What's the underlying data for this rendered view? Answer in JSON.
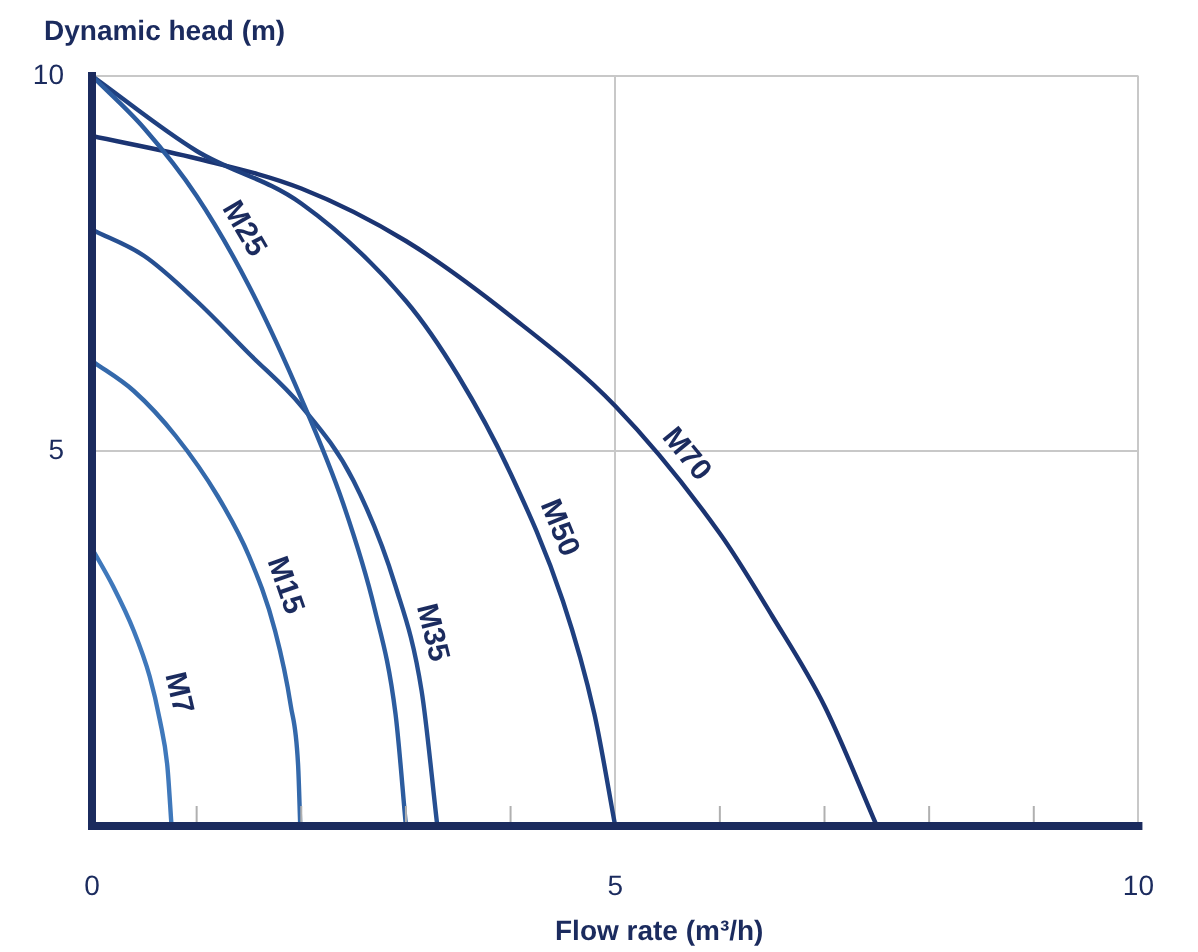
{
  "chart_data": {
    "type": "line",
    "xlabel": "Flow rate (m³/h)",
    "ylabel": "Dynamic head (m)",
    "xlim": [
      0,
      10
    ],
    "ylim": [
      0,
      10
    ],
    "xticks": [
      0,
      {
        "value": 1,
        "label": null
      },
      {
        "value": 2,
        "label": null
      },
      {
        "value": 3,
        "label": null
      },
      {
        "value": 4,
        "label": null
      },
      5,
      {
        "value": 6,
        "label": null
      },
      {
        "value": 7,
        "label": null
      },
      {
        "value": 8,
        "label": null
      },
      {
        "value": 9,
        "label": null
      },
      10
    ],
    "yticks": [
      5,
      10
    ],
    "grid": true,
    "legend": false,
    "marker": "none",
    "line_style": "solid",
    "series": [
      {
        "name": "M7",
        "color": "#3f78bb",
        "x": [
          0,
          0.2,
          0.4,
          0.55,
          0.65,
          0.72,
          0.76
        ],
        "values": [
          3.7,
          3.2,
          2.6,
          2.0,
          1.4,
          0.8,
          0
        ]
      },
      {
        "name": "M15",
        "color": "#3469ab",
        "x": [
          0,
          0.4,
          0.8,
          1.2,
          1.5,
          1.75,
          1.9,
          1.97,
          1.99
        ],
        "values": [
          6.2,
          5.8,
          5.2,
          4.4,
          3.6,
          2.6,
          1.6,
          0.8,
          0
        ]
      },
      {
        "name": "M25",
        "color": "#2c5c9f",
        "x": [
          0,
          0.5,
          1.0,
          1.5,
          2.0,
          2.4,
          2.7,
          2.9,
          3.0
        ],
        "values": [
          10,
          9.3,
          8.4,
          7.2,
          5.7,
          4.3,
          2.9,
          1.5,
          0
        ]
      },
      {
        "name": "M35",
        "color": "#264f91",
        "x": [
          0,
          0.5,
          1.0,
          1.5,
          2.0,
          2.5,
          2.9,
          3.15,
          3.3
        ],
        "values": [
          7.95,
          7.6,
          7.0,
          6.3,
          5.6,
          4.6,
          3.2,
          1.8,
          0
        ]
      },
      {
        "name": "M50",
        "color": "#1f4080",
        "x": [
          0,
          1,
          2,
          3,
          3.5,
          4,
          4.5,
          4.8,
          5.0
        ],
        "values": [
          10,
          9.0,
          8.3,
          7.0,
          6.0,
          4.7,
          3.0,
          1.5,
          0
        ]
      },
      {
        "name": "M70",
        "color": "#1b3472",
        "x": [
          0,
          1,
          2,
          3,
          4,
          5,
          6,
          6.5,
          7,
          7.5
        ],
        "values": [
          9.2,
          8.9,
          8.5,
          7.8,
          6.8,
          5.6,
          3.9,
          2.8,
          1.6,
          0
        ]
      }
    ]
  }
}
